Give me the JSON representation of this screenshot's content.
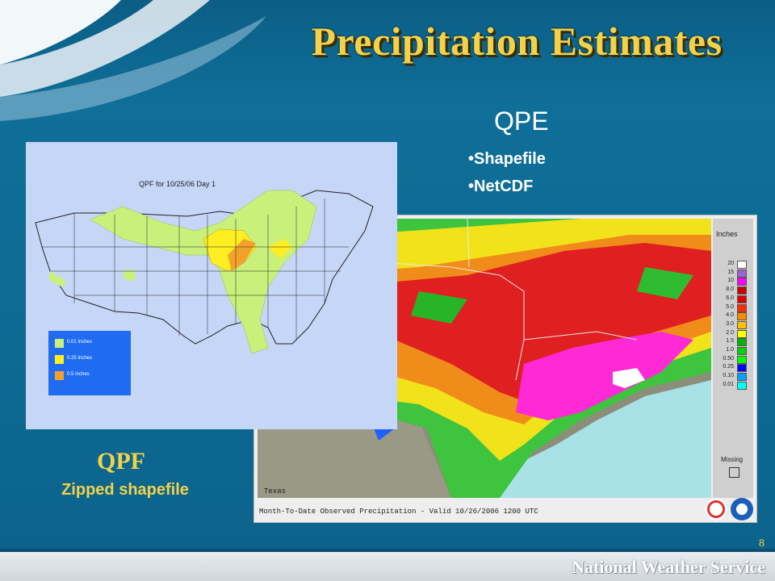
{
  "slide": {
    "title": "Precipitation Estimates",
    "page_number": "8",
    "footer": "National Weather Service"
  },
  "qpe": {
    "heading": "QPE",
    "formats": [
      "Shapefile",
      "NetCDF"
    ],
    "map": {
      "legend_title": "Inches",
      "scale": [
        {
          "label": "20",
          "color": "#ffffff"
        },
        {
          "label": "15",
          "color": "#9f5fd6"
        },
        {
          "label": "10",
          "color": "#ff00ff"
        },
        {
          "label": "8.0",
          "color": "#cc0000"
        },
        {
          "label": "6.0",
          "color": "#e00000"
        },
        {
          "label": "5.0",
          "color": "#ff2a00"
        },
        {
          "label": "4.0",
          "color": "#ff8c00"
        },
        {
          "label": "3.0",
          "color": "#ffc000"
        },
        {
          "label": "2.0",
          "color": "#ffff00"
        },
        {
          "label": "1.5",
          "color": "#00b400"
        },
        {
          "label": "1.0",
          "color": "#00d200"
        },
        {
          "label": "0.50",
          "color": "#00ff00"
        },
        {
          "label": "0.25",
          "color": "#0000ff"
        },
        {
          "label": "0.10",
          "color": "#00a0ff"
        },
        {
          "label": "0.01",
          "color": "#00ffff"
        }
      ],
      "missing_label": "Missing",
      "region_label": "Texas",
      "caption": "Month-To-Date Observed Precipitation - Valid 10/26/2006 1200 UTC"
    }
  },
  "qpf": {
    "heading": "QPF",
    "subheading": "Zipped shapefile",
    "map": {
      "title": "QPF for 10/25/06 Day 1",
      "legend": [
        {
          "label": "0.01 Inches",
          "color": "#c8f07a"
        },
        {
          "label": "0.25 Inches",
          "color": "#ffee22"
        },
        {
          "label": "0.5 Inches",
          "color": "#f2a12a"
        }
      ]
    }
  }
}
